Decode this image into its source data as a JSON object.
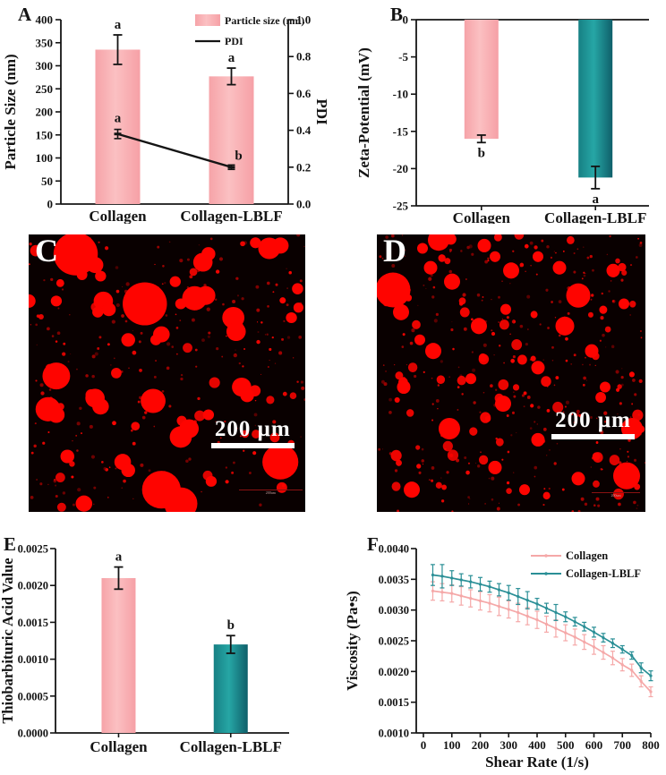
{
  "figure": {
    "background": "#ffffff"
  },
  "colors": {
    "pink": "#f9b0b4",
    "pink_edge": "#f59aa0",
    "teal_mid": "#26a6a5",
    "teal_dark": "#0f5f6a",
    "teal_edge": "#178084",
    "line_pink": "#f5a8a8",
    "line_teal": "#2a8f96",
    "axis_black": "#141414",
    "droplet_red": "#fe0400",
    "micro_bg": "#090000"
  },
  "chart_data": [
    {
      "id": "A",
      "label": "A",
      "type": "bar+line",
      "categories": [
        "Collagen",
        "Collagen-LBLF"
      ],
      "bars": {
        "name": "Particle size (nm)",
        "values": [
          335,
          277
        ],
        "errors": [
          32,
          18
        ],
        "letters": [
          "a",
          "a"
        ]
      },
      "line": {
        "name": "PDI",
        "values": [
          0.38,
          0.2
        ],
        "errors": [
          0.025,
          0.012
        ],
        "letters": [
          "a",
          "b"
        ]
      },
      "left_axis": {
        "label": "Particle Size (nm)",
        "min": 0,
        "max": 400,
        "step": 50,
        "decimals": 0
      },
      "right_axis": {
        "label": "PDI",
        "min": 0,
        "max": 1.0,
        "step": 0.2,
        "decimals": 1
      },
      "legend": [
        "Particle size (nm)",
        "PDI"
      ],
      "legend_position": "top-right"
    },
    {
      "id": "B",
      "label": "B",
      "type": "bar",
      "categories": [
        "Collagen",
        "Collagen-LBLF"
      ],
      "values": [
        -16,
        -21.2
      ],
      "errors": [
        0.5,
        1.5
      ],
      "letters": [
        "b",
        "a"
      ],
      "y_axis": {
        "label": "Zeta-Potential (mV)",
        "min": -25,
        "max": 0,
        "step": 5,
        "decimals": 0
      }
    },
    {
      "id": "E",
      "label": "E",
      "type": "bar",
      "categories": [
        "Collagen",
        "Collagen-LBLF"
      ],
      "values": [
        0.0021,
        0.0012
      ],
      "errors": [
        0.00015,
        0.00012
      ],
      "letters": [
        "a",
        "b"
      ],
      "y_axis": {
        "label": "Thiobarbituric Acid Value",
        "min": 0,
        "max": 0.0025,
        "step": 0.0005,
        "decimals": 4
      }
    },
    {
      "id": "F",
      "label": "F",
      "type": "line",
      "x_axis": {
        "label": "Shear Rate (1/s)",
        "min": 0,
        "max": 800,
        "step": 100,
        "decimals": 0
      },
      "y_axis": {
        "label": "Viscosity (Pa•s)",
        "min": 0.001,
        "max": 0.004,
        "step": 0.0005,
        "decimals": 4
      },
      "x": [
        33,
        66,
        100,
        133,
        166,
        200,
        233,
        266,
        300,
        333,
        366,
        400,
        433,
        466,
        500,
        533,
        566,
        600,
        633,
        666,
        700,
        733,
        766,
        800
      ],
      "series": [
        {
          "name": "Collagen",
          "color_key": "line_pink",
          "y": [
            0.00331,
            0.00329,
            0.00327,
            0.00323,
            0.00319,
            0.00315,
            0.00311,
            0.00306,
            0.00301,
            0.00296,
            0.0029,
            0.00284,
            0.00277,
            0.0027,
            0.00263,
            0.00256,
            0.00248,
            0.0024,
            0.00231,
            0.00222,
            0.00211,
            0.00202,
            0.00184,
            0.00167
          ],
          "err": [
            0.00015,
            0.00014,
            0.00014,
            0.00015,
            0.00014,
            0.00015,
            0.00014,
            0.00015,
            0.00014,
            0.00015,
            0.00014,
            0.00014,
            0.00013,
            0.00014,
            0.00013,
            0.00013,
            0.00012,
            0.00012,
            0.00011,
            0.00011,
            0.0001,
            0.0001,
            9e-05,
            8e-05
          ]
        },
        {
          "name": "Collagen-LBLF",
          "color_key": "line_teal",
          "y": [
            0.00357,
            0.00355,
            0.00352,
            0.00349,
            0.00346,
            0.00342,
            0.00338,
            0.00333,
            0.00328,
            0.00322,
            0.00316,
            0.0031,
            0.00303,
            0.00296,
            0.00289,
            0.00281,
            0.00273,
            0.00264,
            0.00255,
            0.00246,
            0.00236,
            0.00226,
            0.00206,
            0.00193
          ],
          "err": [
            0.00017,
            0.00019,
            0.00012,
            0.0001,
            0.0001,
            0.00011,
            9e-05,
            0.0001,
            0.00012,
            0.00013,
            0.00014,
            9e-05,
            8e-05,
            0.00013,
            8e-05,
            7e-05,
            7e-05,
            8e-05,
            7e-05,
            7e-05,
            6e-05,
            6e-05,
            8e-05,
            8e-05
          ]
        }
      ],
      "legend": [
        "Collagen",
        "Collagen-LBLF"
      ],
      "legend_position": "top-right"
    }
  ],
  "micrographs": [
    {
      "id": "C",
      "label": "C",
      "scale_text": "200 μm",
      "mini_scale_text": "200um",
      "blobs": [
        [
          17,
          7,
          8
        ],
        [
          24,
          11,
          3
        ],
        [
          26,
          15,
          2
        ],
        [
          63,
          10,
          3.5
        ],
        [
          65,
          7,
          2.5
        ],
        [
          87,
          5,
          4
        ],
        [
          91,
          4,
          3
        ],
        [
          82,
          3,
          2
        ],
        [
          53,
          17,
          2
        ],
        [
          27,
          24,
          3.5
        ],
        [
          29,
          27,
          2.5
        ],
        [
          25,
          28,
          2
        ],
        [
          42,
          25,
          8
        ],
        [
          60,
          23,
          4.5
        ],
        [
          64,
          22,
          3.5
        ],
        [
          55,
          25,
          2
        ],
        [
          74,
          30,
          4
        ],
        [
          75,
          35,
          3.5
        ],
        [
          48,
          36,
          3
        ],
        [
          46,
          38,
          2
        ],
        [
          36,
          38,
          2.5
        ],
        [
          10,
          24,
          2
        ],
        [
          0,
          24,
          2.5
        ],
        [
          95,
          30,
          2
        ],
        [
          10,
          51,
          5
        ],
        [
          7,
          63,
          4.5
        ],
        [
          10,
          65,
          3
        ],
        [
          24,
          59,
          3.5
        ],
        [
          26,
          62,
          3
        ],
        [
          45,
          60,
          4.5
        ],
        [
          77,
          55,
          3.5
        ],
        [
          79,
          58,
          2.5
        ],
        [
          65,
          65,
          2
        ],
        [
          55,
          73,
          4
        ],
        [
          58,
          70,
          3.5
        ],
        [
          34,
          82,
          3
        ],
        [
          36,
          85,
          2.5
        ],
        [
          14,
          80,
          2.5
        ],
        [
          91,
          82,
          6.5
        ],
        [
          48,
          92,
          7
        ],
        [
          55,
          97,
          6
        ],
        [
          20,
          97,
          3
        ],
        [
          66,
          89,
          2
        ]
      ],
      "speckle": {
        "seed": 7,
        "medium": 42,
        "tiny": 250
      }
    },
    {
      "id": "D",
      "label": "D",
      "scale_text": "200 μm",
      "mini_scale_text": "200um",
      "blobs": [
        [
          23,
          2,
          4
        ],
        [
          17,
          5,
          2
        ],
        [
          40,
          4,
          2.5
        ],
        [
          44,
          8,
          2
        ],
        [
          6,
          20,
          6.5
        ],
        [
          9,
          28,
          3
        ],
        [
          20,
          12,
          2.5
        ],
        [
          28,
          17,
          3
        ],
        [
          50,
          13,
          3
        ],
        [
          60,
          8,
          2
        ],
        [
          75,
          22,
          4.5
        ],
        [
          68,
          12,
          2.5
        ],
        [
          88,
          13,
          2.5
        ],
        [
          92,
          25,
          2
        ],
        [
          21,
          42,
          3
        ],
        [
          16,
          38,
          2
        ],
        [
          38,
          33,
          3
        ],
        [
          48,
          27,
          2
        ],
        [
          70,
          33,
          3.5
        ],
        [
          80,
          42,
          2.5
        ],
        [
          60,
          48,
          2.5
        ],
        [
          35,
          52,
          2
        ],
        [
          10,
          55,
          2.5
        ],
        [
          47,
          61,
          3
        ],
        [
          27,
          70,
          4
        ],
        [
          60,
          74,
          2.5
        ],
        [
          44,
          84,
          2.5
        ],
        [
          95,
          70,
          4
        ],
        [
          93,
          87,
          5
        ],
        [
          13,
          92,
          3
        ],
        [
          75,
          88,
          2.5
        ],
        [
          55,
          92,
          2
        ],
        [
          85,
          55,
          2
        ]
      ],
      "speckle": {
        "seed": 13,
        "medium": 75,
        "tiny": 320
      }
    }
  ]
}
